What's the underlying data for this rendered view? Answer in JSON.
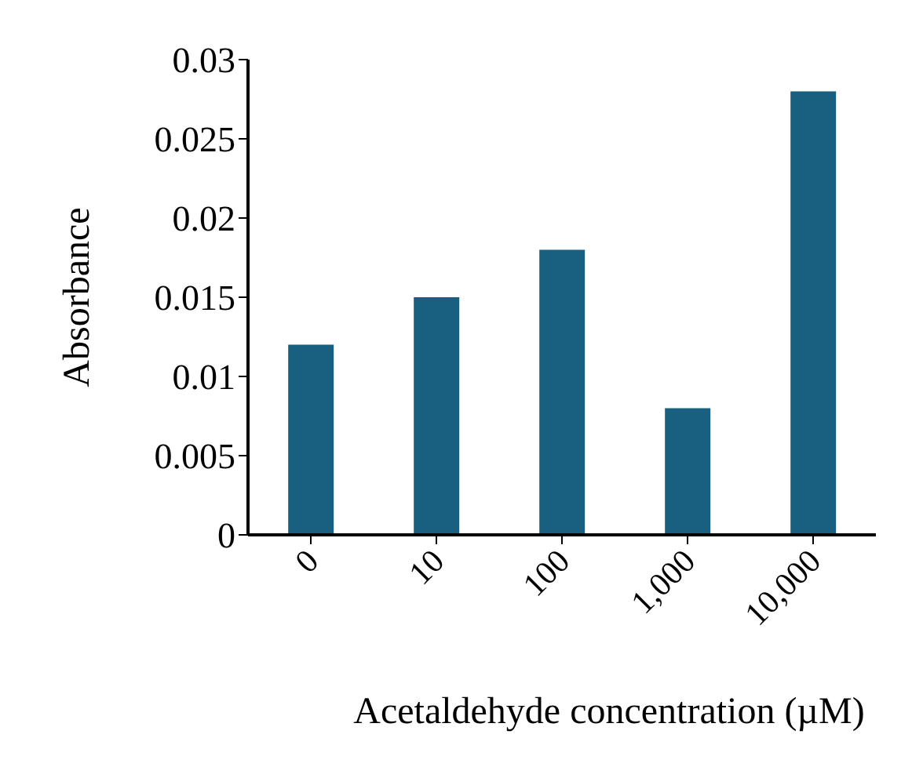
{
  "chart_data": {
    "type": "bar",
    "xlabel": "Acetaldehyde concentration (µM)",
    "ylabel": "Absorbance",
    "categories": [
      "0",
      "10",
      "100",
      "1,000",
      "10,000"
    ],
    "series": [
      {
        "color": "#195f80",
        "values": [
          0.012,
          0.015,
          0.018,
          0.008,
          0.028
        ]
      }
    ],
    "ylim": [
      0,
      0.03
    ],
    "yticks": [
      0,
      0.005,
      0.01,
      0.015,
      0.02,
      0.025,
      0.03
    ],
    "grid": false,
    "legend": false
  }
}
